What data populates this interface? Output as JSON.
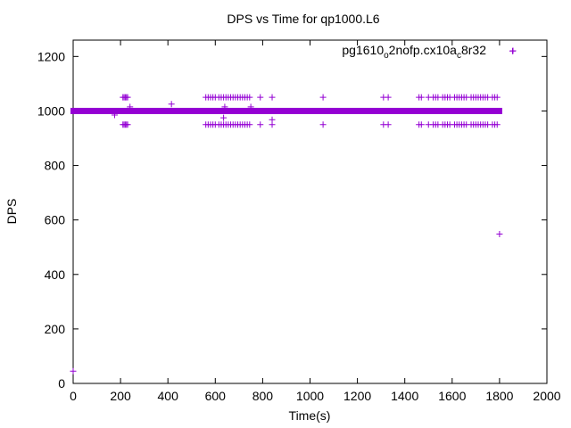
{
  "chart_data": {
    "type": "scatter",
    "title": "DPS vs Time for qp1000.L6",
    "xlabel": "Time(s)",
    "ylabel": "DPS",
    "xlim": [
      0,
      2000
    ],
    "ylim": [
      0,
      1260
    ],
    "x_ticks": [
      0,
      200,
      400,
      600,
      800,
      1000,
      1200,
      1400,
      1600,
      1800,
      2000
    ],
    "y_ticks": [
      0,
      200,
      400,
      600,
      800,
      1000,
      1200
    ],
    "grid": false,
    "legend_position": "top-right",
    "series": [
      {
        "name_parts": [
          {
            "text": "pg1610",
            "sub": false
          },
          {
            "text": "o",
            "sub": true
          },
          {
            "text": "2nofp.cx10a",
            "sub": false
          },
          {
            "text": "c",
            "sub": true
          },
          {
            "text": "8r32",
            "sub": false
          }
        ],
        "color": "#9400d3",
        "marker": "plus",
        "main_band": {
          "x_start": 0,
          "x_end": 1800,
          "y": 1000
        },
        "upper_band_y": 1050,
        "lower_band_y": 950,
        "upper_band_x": [
          210,
          215,
          220,
          225,
          230,
          560,
          570,
          580,
          590,
          600,
          615,
          625,
          635,
          645,
          655,
          665,
          675,
          685,
          695,
          705,
          715,
          725,
          735,
          745,
          790,
          840,
          1055,
          1310,
          1330,
          1460,
          1470,
          1500,
          1520,
          1530,
          1540,
          1560,
          1570,
          1580,
          1590,
          1610,
          1620,
          1630,
          1640,
          1650,
          1660,
          1680,
          1690,
          1700,
          1710,
          1720,
          1730,
          1740,
          1750,
          1770,
          1780,
          1790
        ],
        "lower_band_x": [
          210,
          215,
          220,
          225,
          230,
          560,
          570,
          580,
          590,
          600,
          615,
          625,
          635,
          645,
          655,
          665,
          675,
          685,
          695,
          705,
          715,
          725,
          735,
          745,
          790,
          840,
          1055,
          1310,
          1330,
          1460,
          1470,
          1500,
          1520,
          1530,
          1540,
          1560,
          1570,
          1580,
          1590,
          1610,
          1620,
          1630,
          1640,
          1650,
          1660,
          1680,
          1690,
          1700,
          1710,
          1720,
          1730,
          1740,
          1750,
          1770,
          1780,
          1790
        ],
        "outliers": [
          {
            "x": 0,
            "y": 45
          },
          {
            "x": 175,
            "y": 985
          },
          {
            "x": 240,
            "y": 1015
          },
          {
            "x": 415,
            "y": 1025
          },
          {
            "x": 635,
            "y": 975
          },
          {
            "x": 640,
            "y": 1015
          },
          {
            "x": 750,
            "y": 1015
          },
          {
            "x": 840,
            "y": 968
          },
          {
            "x": 1800,
            "y": 548
          },
          {
            "x": 1855,
            "y": 1220
          }
        ]
      }
    ]
  }
}
